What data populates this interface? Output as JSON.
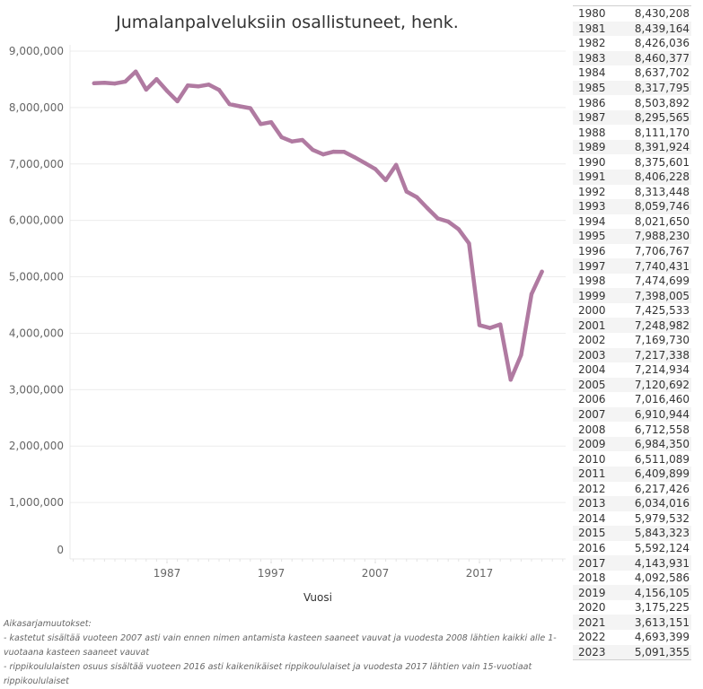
{
  "chart_data": {
    "type": "line",
    "title": "Jumalanpalveluksiin osallistuneet, henk.",
    "xlabel": "Vuosi",
    "ylabel": "",
    "ylim": [
      0,
      9000000
    ],
    "xlim": [
      1978,
      2025
    ],
    "grid": true,
    "line_color": "#b07aa1",
    "y_ticks": [
      "0",
      "1,000,000",
      "2,000,000",
      "3,000,000",
      "4,000,000",
      "5,000,000",
      "6,000,000",
      "7,000,000",
      "8,000,000",
      "9,000,000"
    ],
    "x_ticks": [
      "1987",
      "1997",
      "2007",
      "2017"
    ],
    "x": [
      1980,
      1981,
      1982,
      1983,
      1984,
      1985,
      1986,
      1987,
      1988,
      1989,
      1990,
      1991,
      1992,
      1993,
      1994,
      1995,
      1996,
      1997,
      1998,
      1999,
      2000,
      2001,
      2002,
      2003,
      2004,
      2005,
      2006,
      2007,
      2008,
      2009,
      2010,
      2011,
      2012,
      2013,
      2014,
      2015,
      2016,
      2017,
      2018,
      2019,
      2020,
      2021,
      2022,
      2023
    ],
    "series": [
      {
        "name": "Jumalanpalveluksiin osallistuneet",
        "values": [
          8430208,
          8439164,
          8426036,
          8460377,
          8637702,
          8317795,
          8503892,
          8295565,
          8111170,
          8391924,
          8375601,
          8406228,
          8313448,
          8059746,
          8021650,
          7988230,
          7706767,
          7740431,
          7474699,
          7398005,
          7425533,
          7248982,
          7169730,
          7217338,
          7214934,
          7120692,
          7016460,
          6910944,
          6712558,
          6984350,
          6511089,
          6409899,
          6217426,
          6034016,
          5979532,
          5843323,
          5592124,
          4143931,
          4092586,
          4156105,
          3175225,
          3613151,
          4693399,
          5091355
        ]
      }
    ]
  },
  "table": {
    "rows": [
      {
        "year": "1980",
        "value": "8,430,208"
      },
      {
        "year": "1981",
        "value": "8,439,164"
      },
      {
        "year": "1982",
        "value": "8,426,036"
      },
      {
        "year": "1983",
        "value": "8,460,377"
      },
      {
        "year": "1984",
        "value": "8,637,702"
      },
      {
        "year": "1985",
        "value": "8,317,795"
      },
      {
        "year": "1986",
        "value": "8,503,892"
      },
      {
        "year": "1987",
        "value": "8,295,565"
      },
      {
        "year": "1988",
        "value": "8,111,170"
      },
      {
        "year": "1989",
        "value": "8,391,924"
      },
      {
        "year": "1990",
        "value": "8,375,601"
      },
      {
        "year": "1991",
        "value": "8,406,228"
      },
      {
        "year": "1992",
        "value": "8,313,448"
      },
      {
        "year": "1993",
        "value": "8,059,746"
      },
      {
        "year": "1994",
        "value": "8,021,650"
      },
      {
        "year": "1995",
        "value": "7,988,230"
      },
      {
        "year": "1996",
        "value": "7,706,767"
      },
      {
        "year": "1997",
        "value": "7,740,431"
      },
      {
        "year": "1998",
        "value": "7,474,699"
      },
      {
        "year": "1999",
        "value": "7,398,005"
      },
      {
        "year": "2000",
        "value": "7,425,533"
      },
      {
        "year": "2001",
        "value": "7,248,982"
      },
      {
        "year": "2002",
        "value": "7,169,730"
      },
      {
        "year": "2003",
        "value": "7,217,338"
      },
      {
        "year": "2004",
        "value": "7,214,934"
      },
      {
        "year": "2005",
        "value": "7,120,692"
      },
      {
        "year": "2006",
        "value": "7,016,460"
      },
      {
        "year": "2007",
        "value": "6,910,944"
      },
      {
        "year": "2008",
        "value": "6,712,558"
      },
      {
        "year": "2009",
        "value": "6,984,350"
      },
      {
        "year": "2010",
        "value": "6,511,089"
      },
      {
        "year": "2011",
        "value": "6,409,899"
      },
      {
        "year": "2012",
        "value": "6,217,426"
      },
      {
        "year": "2013",
        "value": "6,034,016"
      },
      {
        "year": "2014",
        "value": "5,979,532"
      },
      {
        "year": "2015",
        "value": "5,843,323"
      },
      {
        "year": "2016",
        "value": "5,592,124"
      },
      {
        "year": "2017",
        "value": "4,143,931"
      },
      {
        "year": "2018",
        "value": "4,092,586"
      },
      {
        "year": "2019",
        "value": "4,156,105"
      },
      {
        "year": "2020",
        "value": "3,175,225"
      },
      {
        "year": "2021",
        "value": "3,613,151"
      },
      {
        "year": "2022",
        "value": "4,693,399"
      },
      {
        "year": "2023",
        "value": "5,091,355"
      }
    ]
  },
  "notes": {
    "heading": "Aikasarjamuutokset:",
    "line1": "- kastetut sisältää vuoteen 2007 asti vain ennen nimen antamista kasteen saaneet vauvat ja vuodesta 2008 lähtien kaikki alle 1-vuotaana kasteen saaneet vauvat",
    "line2": "- rippikoululaisten osuus sisältää vuoteen 2016 asti kaikenikäiset rippikoululaiset ja vuodesta 2017 lähtien vain 15-vuotiaat rippikoululaiset"
  }
}
